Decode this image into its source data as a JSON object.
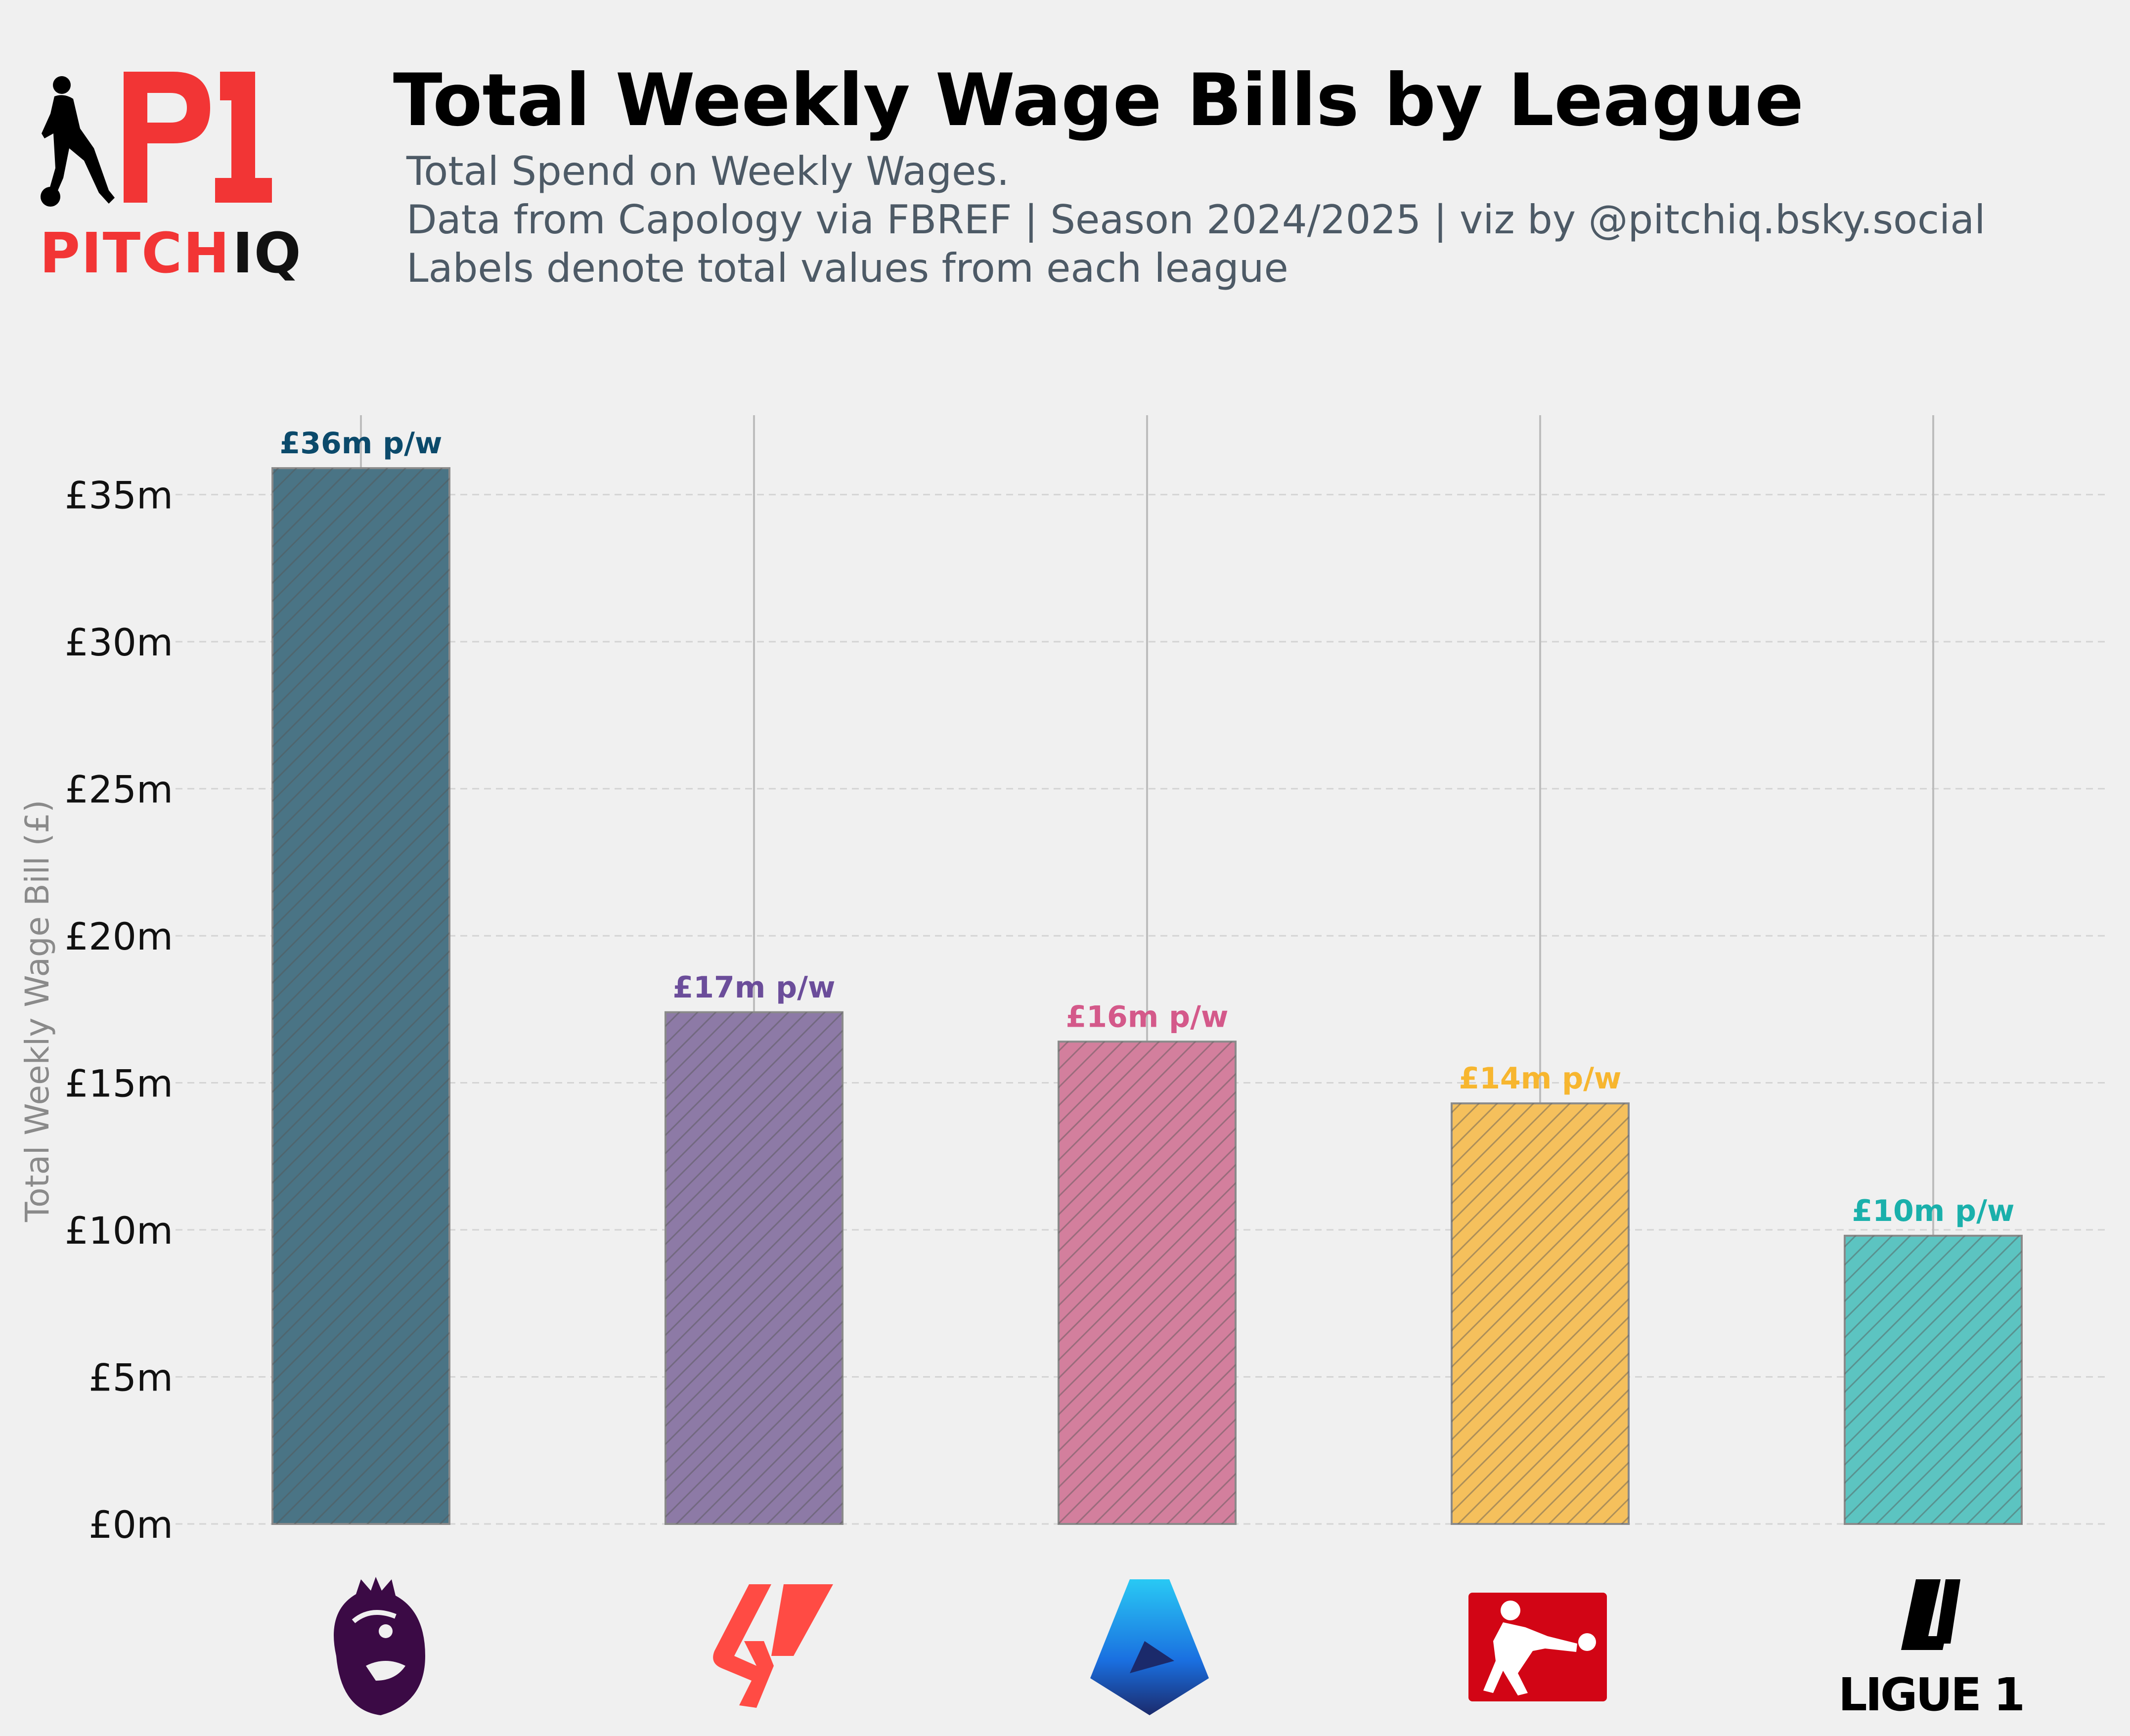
{
  "brand": {
    "monogram": "PI",
    "name_part1": "PITCH",
    "name_part2": "IQ",
    "accent_color": "#f23535"
  },
  "header": {
    "title": "Total Weekly Wage Bills by League",
    "subtitle_lines": [
      "Total Spend on Weekly Wages.",
      "Data from Capology via FBREF | Season 2024/2025 | viz by @pitchiq.bsky.social",
      "Labels denote total values from each league"
    ]
  },
  "chart_data": {
    "type": "bar",
    "ylabel": "Total Weekly Wage Bill (£)",
    "ylim": [
      0,
      37.7
    ],
    "yticks": [
      0,
      5,
      10,
      15,
      20,
      25,
      30,
      35
    ],
    "ytick_labels": [
      "£0m",
      "£5m",
      "£10m",
      "£15m",
      "£20m",
      "£25m",
      "£30m",
      "£35m"
    ],
    "grid": true,
    "bars": [
      {
        "icon": "premier-league-logo",
        "value": 35.9,
        "label": "£36m p/w",
        "color": "#4a7485",
        "label_color": "#0b4a6b"
      },
      {
        "icon": "laliga-logo",
        "value": 17.4,
        "label": "£17m p/w",
        "color": "#8d7aa6",
        "label_color": "#6b4d9a"
      },
      {
        "icon": "serie-a-logo",
        "value": 16.4,
        "label": "£16m p/w",
        "color": "#d37f9d",
        "label_color": "#d4598a"
      },
      {
        "icon": "bundesliga-logo",
        "value": 14.3,
        "label": "£14m p/w",
        "color": "#f5c05c",
        "label_color": "#f7b62f"
      },
      {
        "icon": "ligue-1-logo",
        "value": 9.8,
        "label": "£10m p/w",
        "color": "#5cc4c1",
        "label_color": "#1ab0ab"
      }
    ],
    "logo_texts": {
      "ligue1": "LIGUE 1"
    }
  }
}
